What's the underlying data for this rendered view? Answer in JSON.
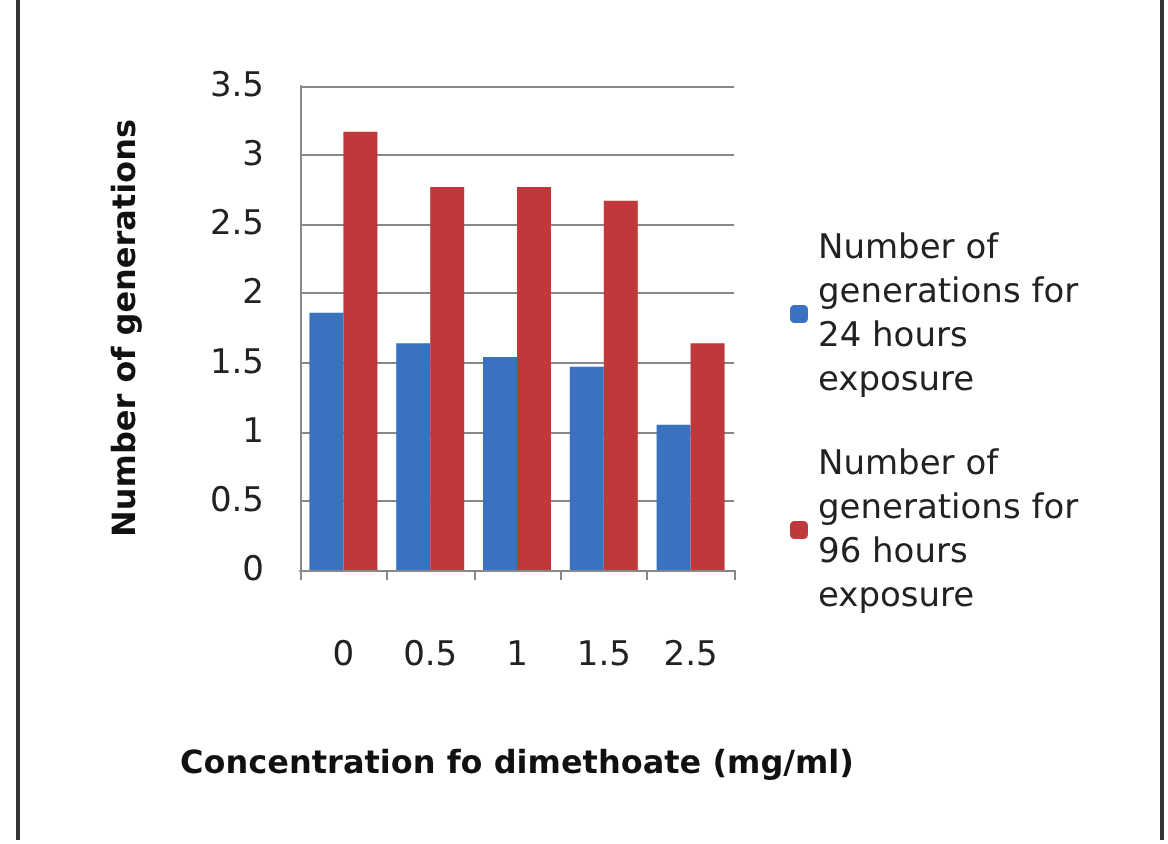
{
  "chart_data": {
    "type": "bar",
    "xlabel": "Concentration fo dimethoate (mg/ml)",
    "ylabel": "Number of generations",
    "categories": [
      "0",
      "0.5",
      "1",
      "1.5",
      "2.5"
    ],
    "series": [
      {
        "name": "Number of generations for 24 hours exposure",
        "color": "#3a72c0",
        "values": [
          1.86,
          1.64,
          1.54,
          1.47,
          1.05
        ]
      },
      {
        "name": "Number of generations for 96 hours exposure",
        "color": "#c0393a",
        "values": [
          3.17,
          2.77,
          2.77,
          2.67,
          1.64
        ]
      }
    ],
    "ylim": [
      0,
      3.5
    ],
    "yticks": [
      0,
      0.5,
      1,
      1.5,
      2,
      2.5,
      3,
      3.5
    ],
    "grid": "y",
    "legend": "right"
  }
}
